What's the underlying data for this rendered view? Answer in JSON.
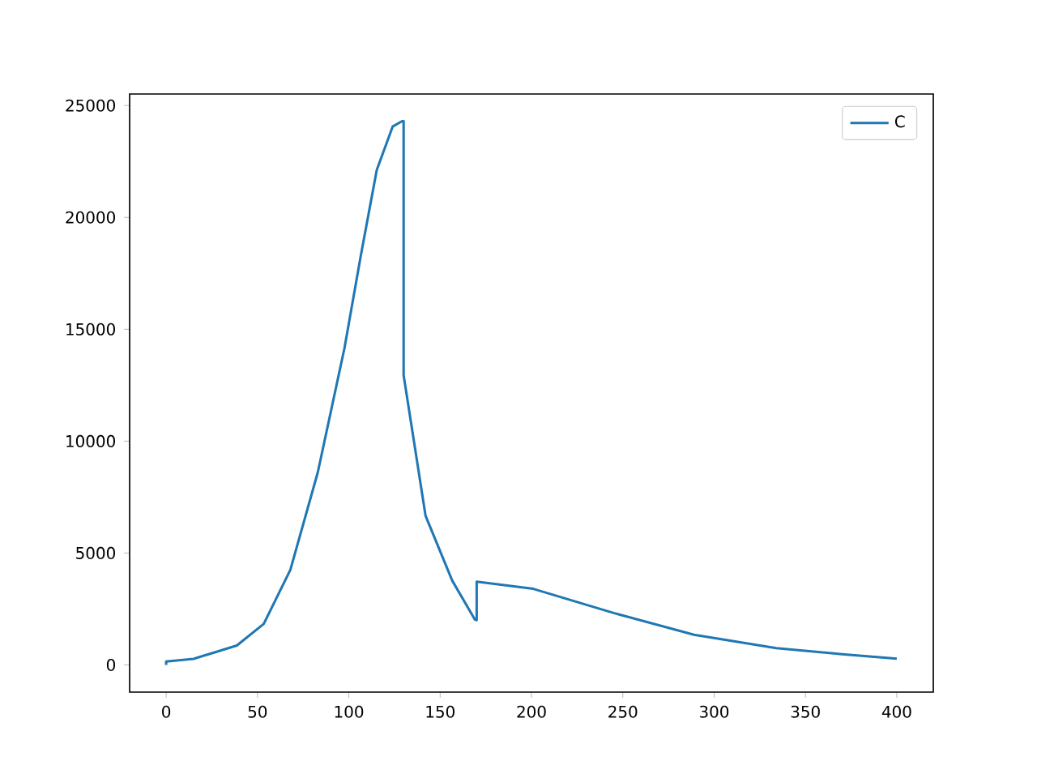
{
  "chart_data": {
    "type": "line",
    "legend": "top right",
    "series": [
      {
        "name": "C",
        "color": "#1f77b4",
        "x": [
          0,
          0,
          15,
          38.7,
          53.4,
          68,
          83,
          97.6,
          106.5,
          115.3,
          124,
          129.2,
          130,
          130,
          142,
          156.6,
          169,
          170,
          170,
          201,
          245,
          289,
          334,
          370,
          400
        ],
        "values": [
          0,
          150,
          270,
          870,
          1830,
          4250,
          8600,
          14150,
          18260,
          22120,
          24060,
          24300,
          24300,
          12950,
          6670,
          3770,
          2030,
          2000,
          3720,
          3400,
          2320,
          1350,
          750,
          480,
          280
        ]
      }
    ],
    "xlim": [
      -20,
      420
    ],
    "ylim": [
      -1215,
      25515
    ],
    "xticks": [
      0,
      50,
      100,
      150,
      200,
      250,
      300,
      350,
      400
    ],
    "yticks": [
      0,
      5000,
      10000,
      15000,
      20000,
      25000
    ]
  }
}
